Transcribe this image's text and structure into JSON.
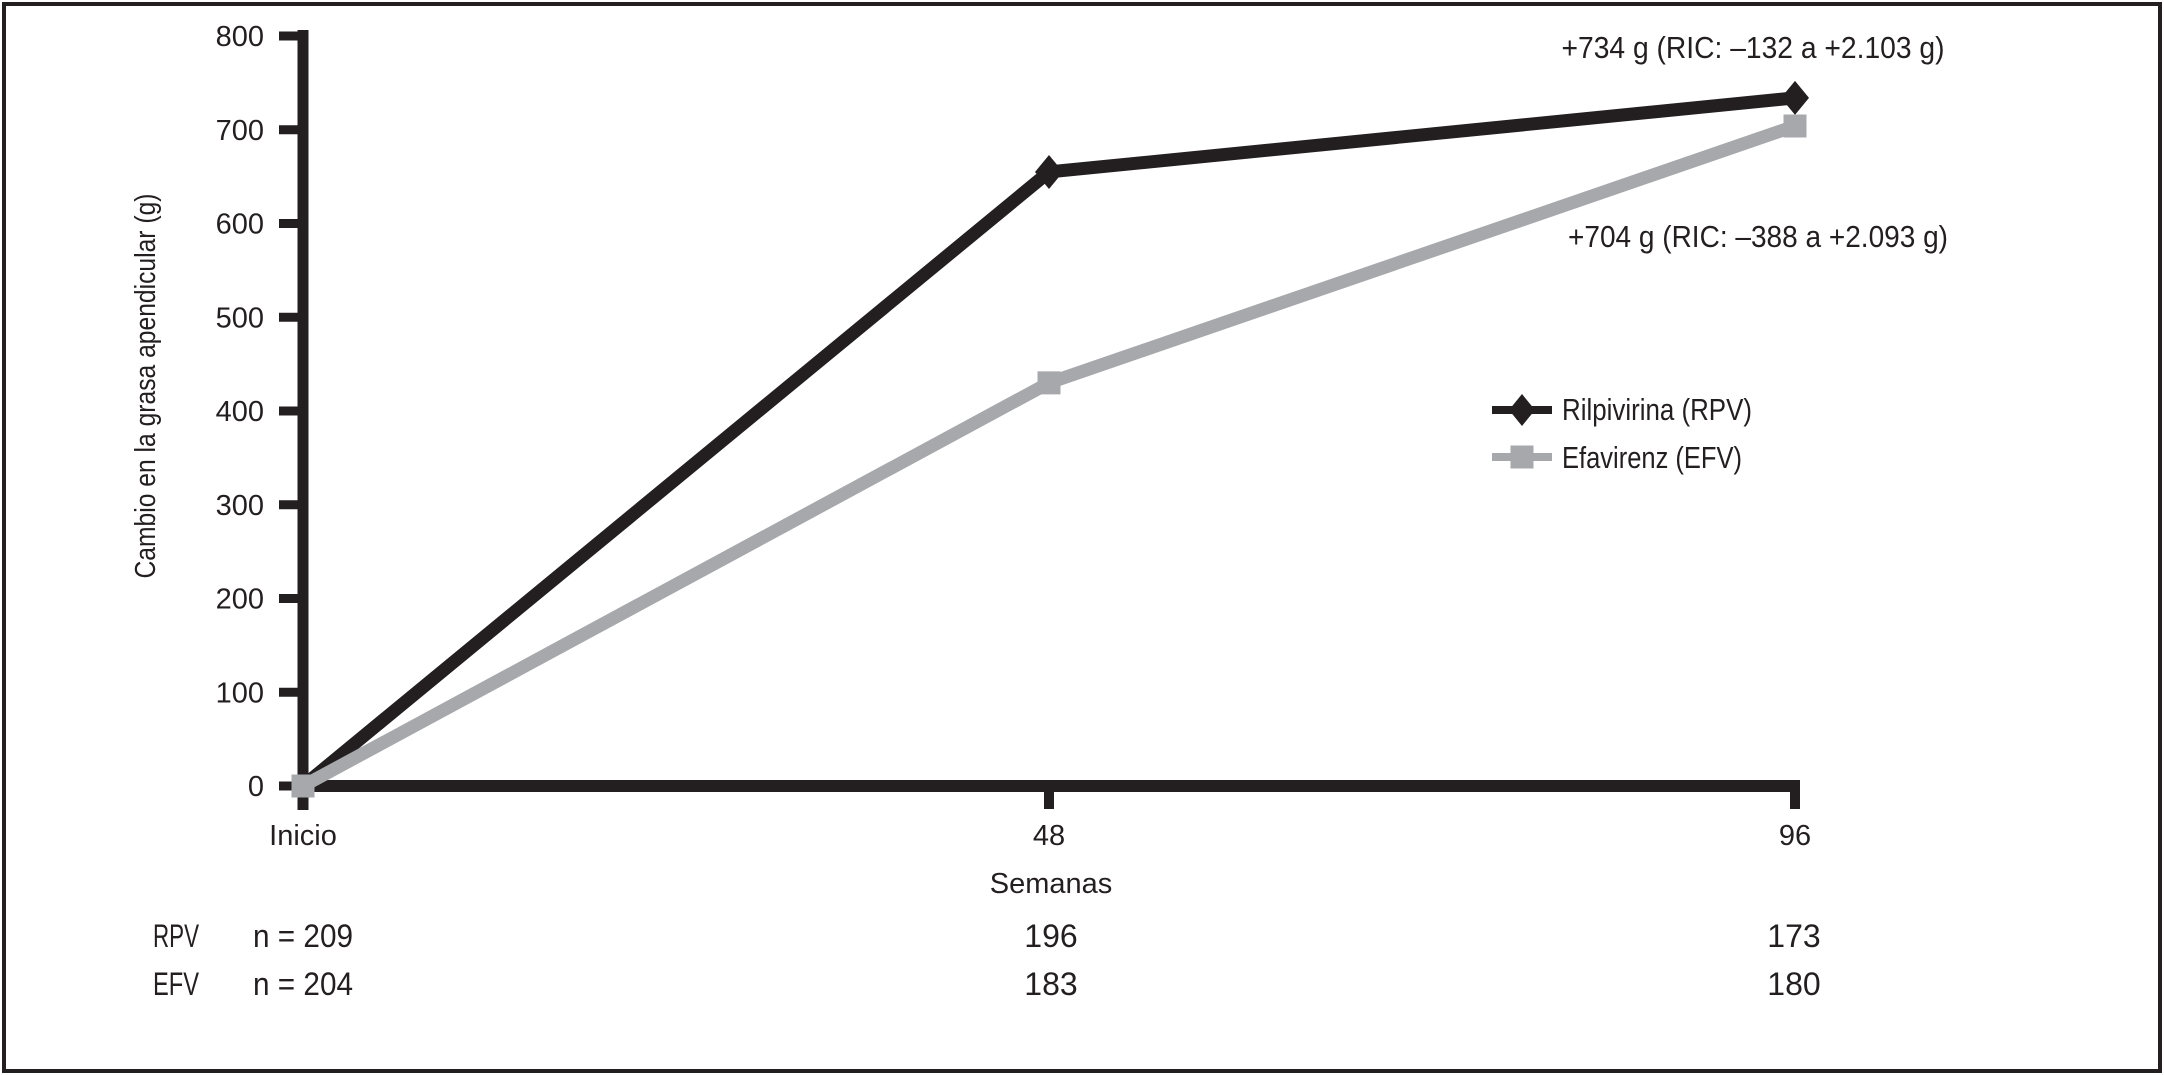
{
  "figure": {
    "background": "#ffffff",
    "border_color": "#231f20",
    "ink_color": "#231f20"
  },
  "chart_data": {
    "type": "line",
    "title": "",
    "xlabel": "Semanas",
    "ylabel": "Cambio en la grasa apendicular (g)",
    "x_categories": [
      "Inicio",
      "48",
      "96"
    ],
    "x_values": [
      0,
      48,
      96
    ],
    "ylim": [
      0,
      800
    ],
    "yticks": [
      0,
      100,
      200,
      300,
      400,
      500,
      600,
      700,
      800
    ],
    "grid": false,
    "legend_position": "center-right",
    "series": [
      {
        "name": "Rilpivirina (RPV)",
        "abbr": "RPV",
        "color": "#231f20",
        "marker": "diamond",
        "values": [
          0,
          655,
          734
        ]
      },
      {
        "name": "Efavirenz (EFV)",
        "abbr": "EFV",
        "color": "#a6a8ab",
        "marker": "square",
        "values": [
          0,
          430,
          704
        ]
      }
    ],
    "annotations": [
      {
        "text": "+734 g (RIC: –132 a +2.103 g)",
        "series": "RPV",
        "at_week": 96
      },
      {
        "text": "+704 g (RIC: –388 a +2.093 g)",
        "series": "EFV",
        "at_week": 96
      }
    ]
  },
  "risk_table": {
    "rows": [
      {
        "label": "RPV",
        "baseline": "n = 209",
        "week48": "196",
        "week96": "173"
      },
      {
        "label": "EFV",
        "baseline": "n = 204",
        "week48": "183",
        "week96": "180"
      }
    ]
  }
}
